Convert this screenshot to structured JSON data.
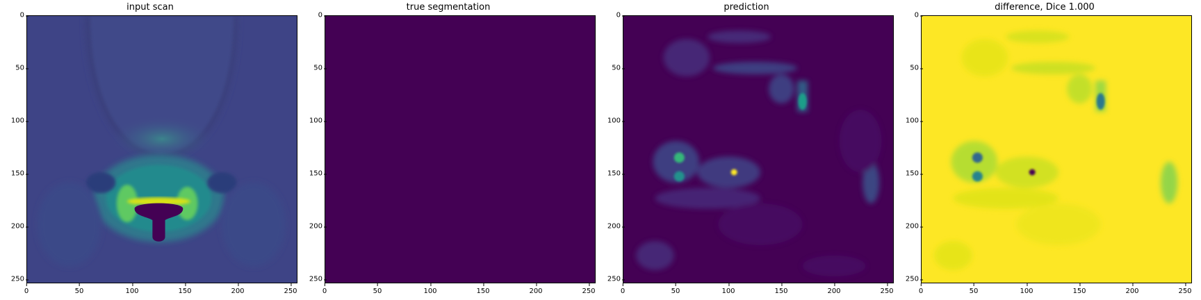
{
  "figure": {
    "panels": [
      {
        "id": "input",
        "title": "input scan"
      },
      {
        "id": "truth",
        "title": "true segmentation"
      },
      {
        "id": "pred",
        "title": "prediction"
      },
      {
        "id": "diff",
        "title": "difference, Dice 1.000"
      }
    ],
    "y_ticks": [
      "0",
      "50",
      "100",
      "150",
      "200",
      "250"
    ],
    "x_ticks": [
      "0",
      "50",
      "100",
      "150",
      "200",
      "250"
    ],
    "axis_range": [
      0,
      256
    ],
    "colormap": {
      "low": "#440154",
      "mid": "#21918c",
      "high": "#fde725"
    }
  }
}
